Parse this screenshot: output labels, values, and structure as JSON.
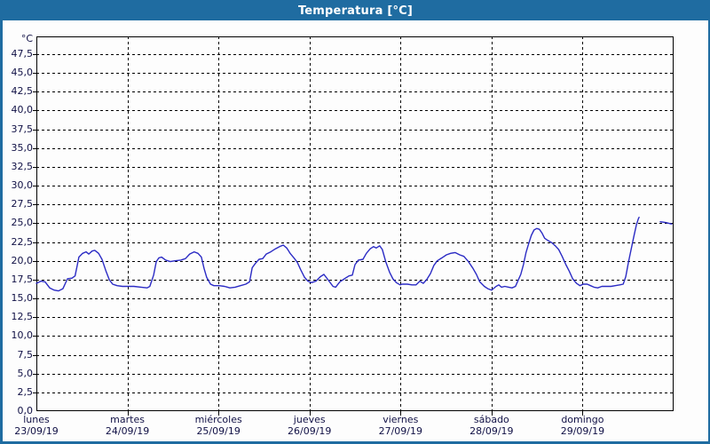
{
  "window": {
    "title": "Temperatura [°C]"
  },
  "colors": {
    "titlebar_bg": "#1f6ca1",
    "window_border": "#1f6ca1",
    "title_text": "#ffffff",
    "plot_border": "#000000",
    "grid": "#000000",
    "label_text": "#101045",
    "line": "#2b2bc4",
    "background": "#fdfdfd"
  },
  "chart_data": {
    "type": "line",
    "title": "Temperatura [°C]",
    "grid": "dashed",
    "legend": "none",
    "y_axis": {
      "unit": "°C",
      "min": 0,
      "max": 47.5,
      "tick_step": 2.5,
      "decimal_separator": ",",
      "tick_labels": [
        "0,0",
        "2,5",
        "5,0",
        "7,5",
        "10,0",
        "12,5",
        "15,0",
        "17,5",
        "20,0",
        "22,5",
        "25,0",
        "27,5",
        "30,0",
        "32,5",
        "35,0",
        "37,5",
        "40,0",
        "42,5",
        "45,0",
        "47,5"
      ]
    },
    "x_axis": {
      "hours_total": 168,
      "hours_per_day": 24,
      "days": [
        {
          "name": "lunes",
          "date": "23/09/19"
        },
        {
          "name": "martes",
          "date": "24/09/19"
        },
        {
          "name": "miércoles",
          "date": "25/09/19"
        },
        {
          "name": "jueves",
          "date": "26/09/19"
        },
        {
          "name": "viernes",
          "date": "27/09/19"
        },
        {
          "name": "sábado",
          "date": "28/09/19"
        },
        {
          "name": "domingo",
          "date": "29/09/19"
        }
      ]
    },
    "series": [
      {
        "name": "Temperatura",
        "color": "#2b2bc4",
        "units": "°C",
        "x_units": "hours since lunes 00:00",
        "segments": [
          [
            [
              0,
              17.0
            ],
            [
              1.2,
              17.3
            ],
            [
              2.3,
              17.2
            ],
            [
              3.5,
              16.4
            ],
            [
              4.7,
              16.1
            ],
            [
              5.8,
              16.0
            ],
            [
              7,
              16.3
            ],
            [
              8.2,
              17.6
            ],
            [
              9.4,
              17.7
            ],
            [
              10.2,
              18.0
            ],
            [
              10.8,
              19.5
            ],
            [
              11.2,
              20.5
            ],
            [
              12.2,
              21.0
            ],
            [
              13.1,
              21.2
            ],
            [
              13.8,
              20.9
            ],
            [
              14.7,
              21.3
            ],
            [
              15.4,
              21.4
            ],
            [
              16.4,
              21.0
            ],
            [
              17.3,
              20.2
            ],
            [
              18.3,
              18.7
            ],
            [
              19.2,
              17.5
            ],
            [
              20.1,
              16.9
            ],
            [
              21.3,
              16.7
            ],
            [
              22.7,
              16.6
            ],
            [
              24,
              16.6
            ],
            [
              25.7,
              16.6
            ],
            [
              27.6,
              16.5
            ],
            [
              29.2,
              16.4
            ],
            [
              29.9,
              16.6
            ],
            [
              30.9,
              18.1
            ],
            [
              31.6,
              19.9
            ],
            [
              32.3,
              20.4
            ],
            [
              33,
              20.5
            ],
            [
              34.1,
              20.1
            ],
            [
              35.3,
              19.9
            ],
            [
              36.5,
              20.0
            ],
            [
              38.1,
              20.1
            ],
            [
              39.3,
              20.3
            ],
            [
              40.4,
              20.9
            ],
            [
              41.6,
              21.2
            ],
            [
              42.6,
              21.0
            ],
            [
              43.5,
              20.5
            ],
            [
              44.2,
              19.0
            ],
            [
              44.9,
              17.8
            ],
            [
              45.9,
              16.9
            ],
            [
              46.8,
              16.7
            ],
            [
              48.2,
              16.7
            ],
            [
              49.6,
              16.6
            ],
            [
              51,
              16.4
            ],
            [
              52.4,
              16.5
            ],
            [
              53.8,
              16.7
            ],
            [
              55.2,
              16.9
            ],
            [
              56.2,
              17.2
            ],
            [
              56.9,
              19.1
            ],
            [
              57.8,
              19.7
            ],
            [
              58.7,
              20.2
            ],
            [
              59.7,
              20.3
            ],
            [
              60.6,
              20.9
            ],
            [
              61.8,
              21.2
            ],
            [
              63,
              21.6
            ],
            [
              64.1,
              21.9
            ],
            [
              65.1,
              22.1
            ],
            [
              66,
              21.7
            ],
            [
              66.9,
              21.0
            ],
            [
              67.9,
              20.4
            ],
            [
              68.8,
              19.8
            ],
            [
              69.7,
              18.8
            ],
            [
              70.7,
              17.8
            ],
            [
              71.6,
              17.3
            ],
            [
              72.5,
              17.1
            ],
            [
              73.7,
              17.3
            ],
            [
              74.9,
              17.9
            ],
            [
              75.8,
              18.2
            ],
            [
              77,
              17.4
            ],
            [
              78.2,
              16.6
            ],
            [
              78.9,
              16.5
            ],
            [
              80,
              17.2
            ],
            [
              81.2,
              17.6
            ],
            [
              82.4,
              18.0
            ],
            [
              83.3,
              18.1
            ],
            [
              84,
              19.5
            ],
            [
              84.9,
              20.1
            ],
            [
              86.1,
              20.2
            ],
            [
              87,
              21.0
            ],
            [
              88,
              21.6
            ],
            [
              88.9,
              21.9
            ],
            [
              89.6,
              21.7
            ],
            [
              90.5,
              22.0
            ],
            [
              91.2,
              21.5
            ],
            [
              92.1,
              19.9
            ],
            [
              93.1,
              18.5
            ],
            [
              94,
              17.6
            ],
            [
              94.9,
              17.1
            ],
            [
              95.9,
              16.8
            ],
            [
              96.4,
              16.9
            ],
            [
              97.8,
              16.9
            ],
            [
              99,
              16.8
            ],
            [
              100.1,
              16.8
            ],
            [
              101.1,
              17.3
            ],
            [
              102,
              17.0
            ],
            [
              102.9,
              17.5
            ],
            [
              103.9,
              18.3
            ],
            [
              104.8,
              19.4
            ],
            [
              105.7,
              20.0
            ],
            [
              106.9,
              20.4
            ],
            [
              108.1,
              20.8
            ],
            [
              109.2,
              21.0
            ],
            [
              110.4,
              21.1
            ],
            [
              111.6,
              20.8
            ],
            [
              112.7,
              20.6
            ],
            [
              113.9,
              19.9
            ],
            [
              115.1,
              19.0
            ],
            [
              116,
              18.2
            ],
            [
              116.9,
              17.2
            ],
            [
              118.1,
              16.6
            ],
            [
              119,
              16.3
            ],
            [
              120,
              16.1
            ],
            [
              121.2,
              16.6
            ],
            [
              121.9,
              16.8
            ],
            [
              122.6,
              16.5
            ],
            [
              123.5,
              16.6
            ],
            [
              124.5,
              16.5
            ],
            [
              125.4,
              16.4
            ],
            [
              126.3,
              16.6
            ],
            [
              127,
              17.4
            ],
            [
              127.7,
              18.2
            ],
            [
              128.4,
              19.5
            ],
            [
              129.1,
              21.1
            ],
            [
              129.8,
              22.3
            ],
            [
              130.5,
              23.4
            ],
            [
              131.2,
              24.1
            ],
            [
              131.9,
              24.3
            ],
            [
              132.6,
              24.2
            ],
            [
              133.3,
              23.7
            ],
            [
              134,
              23.0
            ],
            [
              134.9,
              22.7
            ],
            [
              135.9,
              22.4
            ],
            [
              136.8,
              22.0
            ],
            [
              137.7,
              21.5
            ],
            [
              138.6,
              20.6
            ],
            [
              139.6,
              19.5
            ],
            [
              140.5,
              18.6
            ],
            [
              141.4,
              17.6
            ],
            [
              142.4,
              17.0
            ],
            [
              143.3,
              16.7
            ],
            [
              144.2,
              16.9
            ],
            [
              145.2,
              16.9
            ],
            [
              146.1,
              16.7
            ],
            [
              147,
              16.5
            ],
            [
              148,
              16.4
            ],
            [
              149.1,
              16.6
            ],
            [
              150.3,
              16.6
            ],
            [
              151.5,
              16.6
            ],
            [
              152.6,
              16.7
            ],
            [
              153.8,
              16.8
            ],
            [
              154.7,
              16.9
            ],
            [
              155.4,
              17.9
            ],
            [
              156.1,
              19.8
            ],
            [
              156.8,
              21.5
            ],
            [
              157.5,
              23.2
            ],
            [
              158.2,
              24.8
            ],
            [
              158.7,
              25.6
            ],
            [
              158.9,
              25.8
            ]
          ],
          [
            [
              164.5,
              25.2
            ],
            [
              165.9,
              25.1
            ],
            [
              167.5,
              24.9
            ]
          ]
        ]
      }
    ]
  }
}
